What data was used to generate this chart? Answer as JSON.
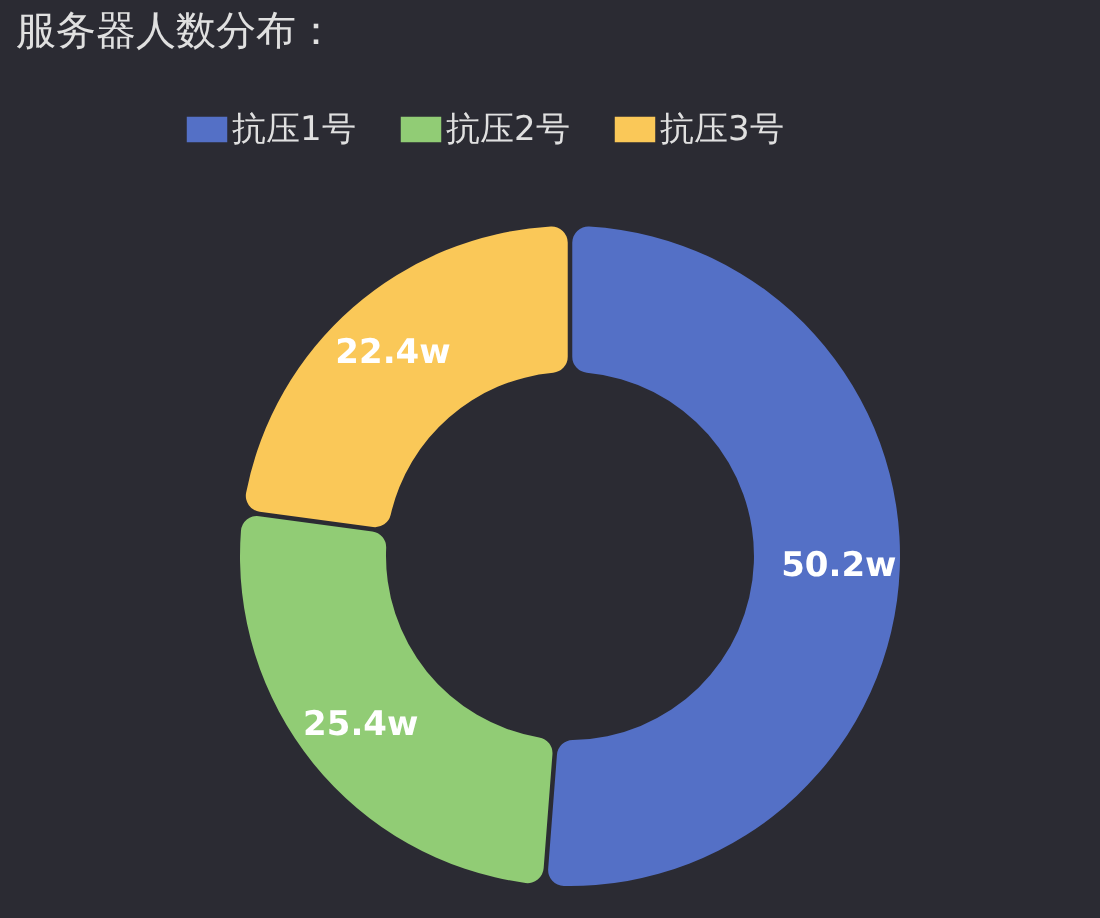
{
  "chart_data": {
    "type": "donut",
    "title": "服务器人数分布：",
    "categories": [
      "抗压1号",
      "抗压2号",
      "抗压3号"
    ],
    "values": [
      50.2,
      25.4,
      22.4
    ],
    "value_labels": [
      "50.2w",
      "25.4w",
      "22.4w"
    ],
    "colors": [
      "#5470c6",
      "#91cc75",
      "#fac858"
    ],
    "legend": "top"
  }
}
